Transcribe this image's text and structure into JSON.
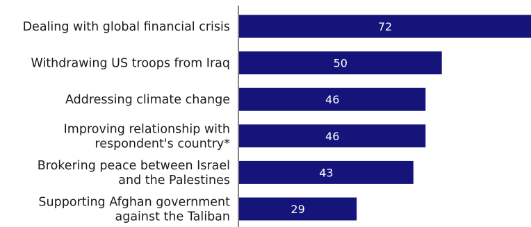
{
  "chart_data": {
    "type": "bar",
    "orientation": "horizontal",
    "categories": [
      "Dealing with global financial crisis",
      "Withdrawing US troops from Iraq",
      "Addressing climate change",
      "Improving relationship with respondent's country*",
      "Brokering peace between Israel and the Palestines",
      "Supporting Afghan government against the Taliban"
    ],
    "category_lines": [
      [
        "Dealing with global financial crisis"
      ],
      [
        "Withdrawing US troops from Iraq"
      ],
      [
        "Addressing climate change"
      ],
      [
        "Improving relationship with",
        "respondent's country*"
      ],
      [
        "Brokering peace between Israel",
        "and the Palestines"
      ],
      [
        "Supporting Afghan government",
        "against the Taliban"
      ]
    ],
    "values": [
      72,
      50,
      46,
      46,
      43,
      29
    ],
    "data_labels": [
      "72",
      "50",
      "46",
      "46",
      "43",
      "29"
    ],
    "xlim": [
      0,
      72
    ],
    "grid": false,
    "legend": "none",
    "colors": {
      "bar": "#14147a",
      "axis": "#333333",
      "label_text": "#1a1a1a",
      "value_text": "#ffffff"
    }
  }
}
